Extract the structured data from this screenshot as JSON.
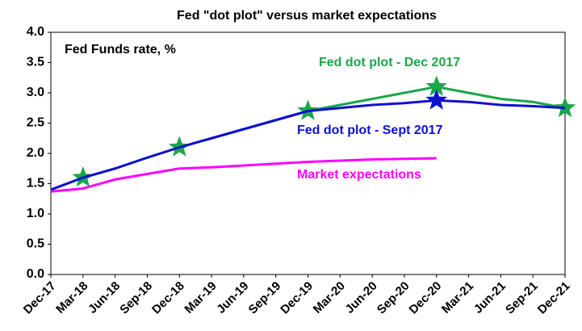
{
  "chart_data": {
    "type": "line",
    "title": "Fed \"dot plot\" versus market expectations",
    "annotations": [
      {
        "text": "Fed Funds rate, %",
        "color": "#000000"
      },
      {
        "text": "Fed dot plot - Dec 2017",
        "color": "#1aa64a"
      },
      {
        "text": "Fed dot plot - Sept 2017",
        "color": "#1010d0"
      },
      {
        "text": "Market expectations",
        "color": "#ff00ff"
      }
    ],
    "categories": [
      "Dec-17",
      "Mar-18",
      "Jun-18",
      "Sep-18",
      "Dec-18",
      "Mar-19",
      "Jun-19",
      "Sep-19",
      "Dec-19",
      "Mar-20",
      "Jun-20",
      "Sep-20",
      "Dec-20",
      "Mar-21",
      "Jun-21",
      "Sep-21",
      "Dec-21"
    ],
    "series": [
      {
        "name": "Market expectations",
        "color": "#ff00ff",
        "values": [
          1.37,
          1.42,
          1.57,
          1.66,
          1.75,
          1.77,
          1.8,
          1.83,
          1.86,
          1.88,
          1.9,
          1.91,
          1.92,
          null,
          null,
          null,
          null
        ]
      },
      {
        "name": "Fed dot plot - Dec 2017",
        "color": "#1aa64a",
        "star_color": "#1aa64a",
        "stars": [
          1,
          4,
          8,
          12,
          16
        ],
        "values": [
          1.4,
          1.6,
          1.75,
          1.93,
          2.1,
          2.25,
          2.4,
          2.55,
          2.7,
          2.8,
          2.9,
          3.0,
          3.1,
          3.0,
          2.9,
          2.85,
          2.75
        ]
      },
      {
        "name": "Fed dot plot - Sept 2017",
        "color": "#1010d0",
        "star_color": "#1010d0",
        "stars": [
          12
        ],
        "values": [
          1.4,
          1.6,
          1.75,
          1.93,
          2.1,
          2.25,
          2.4,
          2.55,
          2.7,
          2.75,
          2.8,
          2.83,
          2.875,
          2.85,
          2.8,
          2.78,
          2.75
        ]
      }
    ],
    "ylim": [
      0,
      4
    ],
    "yticks": [
      {
        "value": 0,
        "label": "0.0"
      },
      0.5,
      {
        "value": 1,
        "label": "1.0"
      },
      1.5,
      {
        "value": 2,
        "label": "2.0"
      },
      2.5,
      {
        "value": 3,
        "label": "3.0"
      },
      3.5,
      {
        "value": 4,
        "label": "4.0"
      }
    ],
    "grid": false
  }
}
